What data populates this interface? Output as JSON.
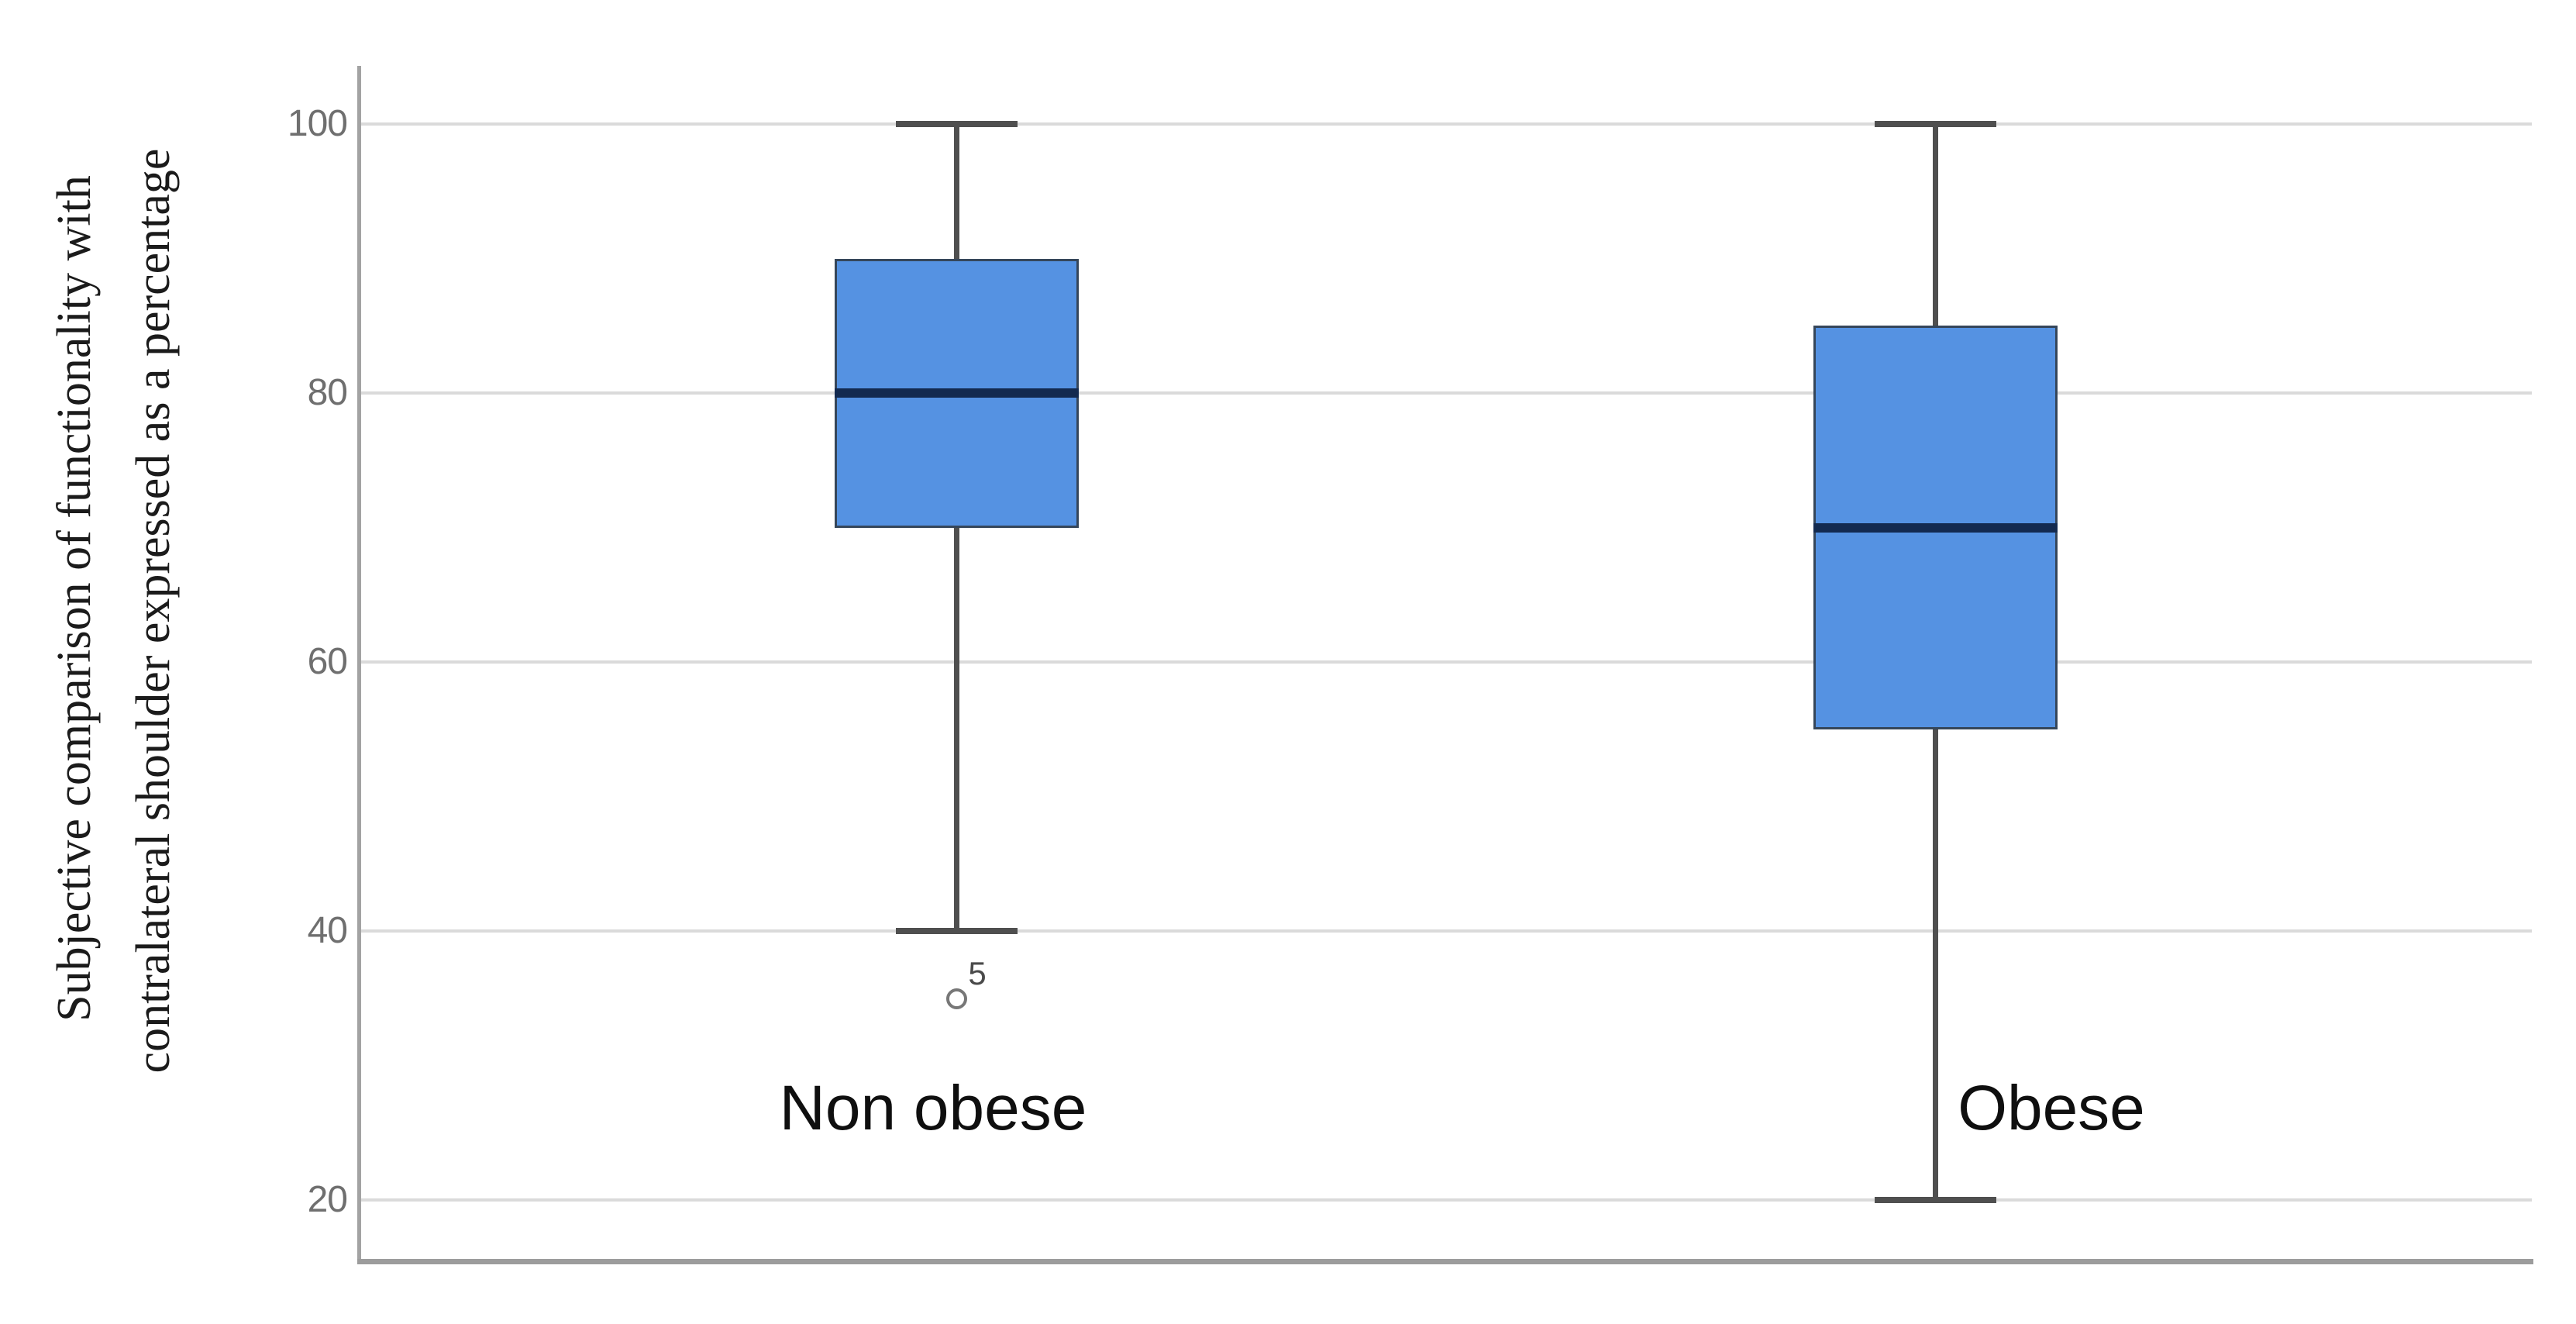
{
  "figure": {
    "background": "#ffffff",
    "y_axis_title_line1": "Subjective comparison of functionality with",
    "y_axis_title_line2": "contralateral shoulder expressed as a percentage"
  },
  "chart_data": {
    "type": "boxplot",
    "title": "",
    "xlabel": "",
    "ylabel": "Subjective comparison of functionality with contralateral shoulder expressed as a percentage",
    "ylim": [
      14,
      104
    ],
    "yticks": [
      100,
      80,
      60,
      40,
      20
    ],
    "grid": true,
    "legend": "none",
    "categories": [
      "Non obese",
      "Obese"
    ],
    "series": [
      {
        "name": "Non obese",
        "whisker_low": 40,
        "q1": 70,
        "median": 80,
        "q3": 90,
        "whisker_high": 100,
        "outliers": [
          {
            "value": 35,
            "label": "5"
          }
        ]
      },
      {
        "name": "Obese",
        "whisker_low": 20,
        "q1": 55,
        "median": 70,
        "q3": 85,
        "whisker_high": 100,
        "outliers": []
      }
    ],
    "colors": {
      "box_fill": "#5592e2",
      "box_border": "#35465a",
      "median": "#132a50",
      "whisker": "#4f4f4f",
      "gridline": "#dadada",
      "axis": "#a3a3a3",
      "bottom_axis": "#9c9c9c",
      "tick_label": "#6f6f6f",
      "category_label": "#0f0f0f",
      "outlier_stroke": "#777777",
      "outlier_label": "#4a4a4a"
    }
  }
}
